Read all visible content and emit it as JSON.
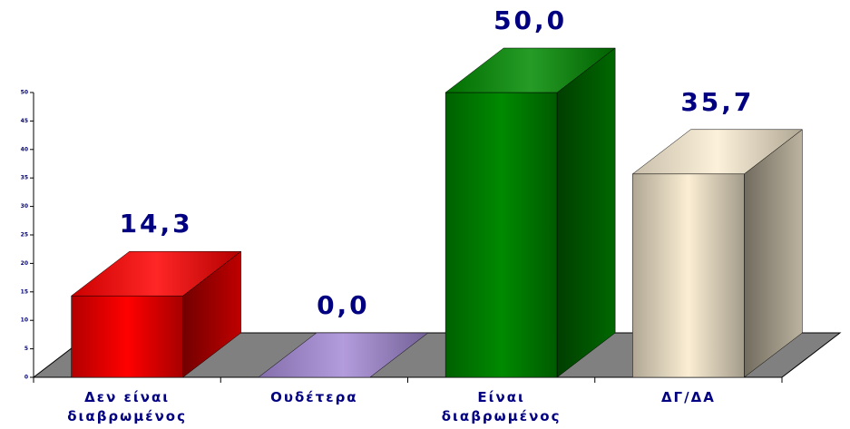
{
  "chart_data": {
    "type": "bar3d",
    "categories": [
      "Δεν είναι διαβρωμένος",
      "Ουδέτερα",
      "Είναι διαβρωμένος",
      "ΔΓ/ΔΑ"
    ],
    "values": [
      14.3,
      0.0,
      50.0,
      35.7
    ],
    "value_labels": [
      "14,3",
      "0,0",
      "50,0",
      "35,7"
    ],
    "colors": [
      "#ff0000",
      "#a58ad6",
      "#008a00",
      "#fbeed4"
    ],
    "ylim": [
      0,
      50
    ],
    "yticks": [
      0,
      5,
      10,
      15,
      20,
      25,
      30,
      35,
      40,
      45,
      50
    ]
  }
}
